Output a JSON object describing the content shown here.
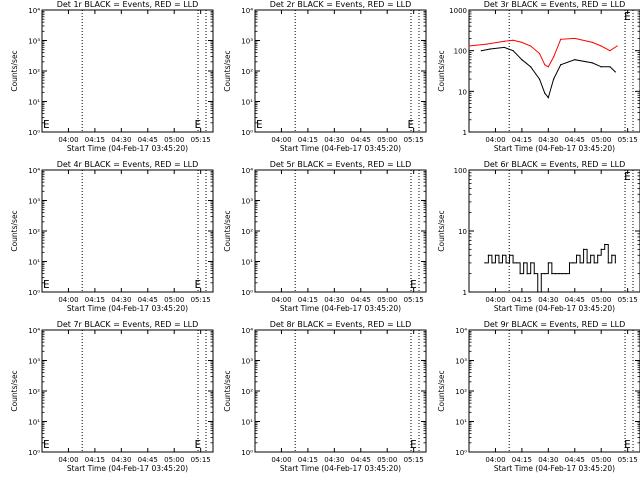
{
  "chart_data": [
    {
      "type": "line",
      "title": "Det 1r BLACK = Events, RED = LLD",
      "xlabel": "Start Time (04-Feb-17 03:45:20)",
      "ylabel": "Counts/sec",
      "log_y": true,
      "ylim": [
        1,
        10000
      ],
      "y_ticks": [
        "10⁰",
        "10¹",
        "10²",
        "10³",
        "10⁴"
      ],
      "x_tick_labels": [
        "04:00",
        "04:15",
        "04:30",
        "04:45",
        "05:00",
        "05:15"
      ],
      "event_markers": [
        "E",
        "E"
      ],
      "series": []
    },
    {
      "type": "line",
      "title": "Det 2r BLACK = Events, RED = LLD",
      "xlabel": "Start Time (04-Feb-17 03:45:20)",
      "ylabel": "Counts/sec",
      "log_y": true,
      "ylim": [
        1,
        10000
      ],
      "y_ticks": [
        "10⁰",
        "10¹",
        "10²",
        "10³",
        "10⁴"
      ],
      "x_tick_labels": [
        "04:00",
        "04:15",
        "04:30",
        "04:45",
        "05:00",
        "05:15"
      ],
      "event_markers": [
        "E",
        "E"
      ],
      "series": []
    },
    {
      "type": "line",
      "title": "Det 3r BLACK = Events, RED = LLD",
      "xlabel": "Start Time (04-Feb-17 03:45:20)",
      "ylabel": "Counts/sec",
      "log_y": true,
      "ylim": [
        1,
        1000
      ],
      "y_ticks": [
        "1",
        "10",
        "100",
        "1000"
      ],
      "x_tick_labels": [
        "04:00",
        "04:15",
        "04:30",
        "04:45",
        "05:00",
        "05:15"
      ],
      "event_markers": [
        "E"
      ],
      "colors": {
        "events": "#000000",
        "lld": "#ff0000"
      },
      "series": [
        {
          "color": "#ff0000",
          "x": [
            "03:45",
            "03:55",
            "04:05",
            "04:10",
            "04:15",
            "04:20",
            "04:25",
            "04:28",
            "04:30",
            "04:33",
            "04:37",
            "04:45",
            "04:55",
            "05:00",
            "05:05",
            "05:09"
          ],
          "y": [
            130,
            145,
            170,
            180,
            160,
            130,
            85,
            45,
            40,
            70,
            190,
            200,
            160,
            130,
            100,
            130
          ]
        },
        {
          "color": "#000000",
          "x": [
            "03:52",
            "03:57",
            "04:05",
            "04:10",
            "04:15",
            "04:20",
            "04:25",
            "04:28",
            "04:30",
            "04:33",
            "04:37",
            "04:45",
            "04:55",
            "05:00",
            "05:05",
            "05:08"
          ],
          "y": [
            100,
            110,
            120,
            100,
            60,
            40,
            20,
            9,
            7,
            20,
            45,
            60,
            50,
            40,
            40,
            30
          ]
        }
      ]
    },
    {
      "type": "line",
      "title": "Det 4r BLACK = Events, RED = LLD",
      "xlabel": "Start Time (04-Feb-17 03:45:20)",
      "ylabel": "Counts/sec",
      "log_y": true,
      "ylim": [
        1,
        10000
      ],
      "y_ticks": [
        "10⁰",
        "10¹",
        "10²",
        "10³",
        "10⁴"
      ],
      "x_tick_labels": [
        "04:00",
        "04:15",
        "04:30",
        "04:45",
        "05:00",
        "05:15"
      ],
      "event_markers": [
        "E",
        "E"
      ],
      "series": []
    },
    {
      "type": "line",
      "title": "Det 5r BLACK = Events, RED = LLD",
      "xlabel": "Start Time (04-Feb-17 03:45:20)",
      "ylabel": "Counts/sec",
      "log_y": true,
      "ylim": [
        1,
        10000
      ],
      "y_ticks": [
        "10⁰",
        "10¹",
        "10²",
        "10³",
        "10⁴"
      ],
      "x_tick_labels": [
        "04:00",
        "04:15",
        "04:30",
        "04:45",
        "05:00",
        "05:15"
      ],
      "event_markers": [
        "E"
      ],
      "series": []
    },
    {
      "type": "line",
      "title": "Det 6r BLACK = Events, RED = LLD",
      "xlabel": "Start Time (04-Feb-17 03:45:20)",
      "ylabel": "Counts/sec",
      "log_y": true,
      "ylim": [
        1,
        100
      ],
      "y_ticks": [
        "1",
        "10",
        "100"
      ],
      "x_tick_labels": [
        "04:00",
        "04:15",
        "04:30",
        "04:45",
        "05:00",
        "05:15"
      ],
      "event_markers": [
        "E"
      ],
      "colors": {
        "events": "#000000"
      },
      "series": [
        {
          "color": "#000000",
          "step": true,
          "x": [
            "03:54",
            "03:56",
            "03:58",
            "04:00",
            "04:02",
            "04:04",
            "04:06",
            "04:08",
            "04:10",
            "04:12",
            "04:14",
            "04:16",
            "04:18",
            "04:20",
            "04:22",
            "04:24",
            "04:26",
            "04:28",
            "04:30",
            "04:32",
            "04:34",
            "04:36",
            "04:38",
            "04:40",
            "04:42",
            "04:44",
            "04:46",
            "04:48",
            "04:50",
            "04:52",
            "04:54",
            "04:56",
            "04:58",
            "05:00",
            "05:02",
            "05:04",
            "05:06",
            "05:08"
          ],
          "y": [
            3,
            4,
            3,
            4,
            3,
            4,
            3,
            4,
            3,
            3,
            2,
            3,
            2,
            3,
            2,
            1,
            2,
            2,
            3,
            2,
            2,
            2,
            2,
            2,
            3,
            3,
            4,
            3,
            5,
            3,
            4,
            3,
            4,
            5,
            6,
            3,
            4,
            3
          ]
        }
      ]
    },
    {
      "type": "line",
      "title": "Det 7r BLACK = Events, RED = LLD",
      "xlabel": "Start Time (04-Feb-17 03:45:20)",
      "ylabel": "Counts/sec",
      "log_y": true,
      "ylim": [
        1,
        10000
      ],
      "y_ticks": [
        "10⁰",
        "10¹",
        "10²",
        "10³",
        "10⁴"
      ],
      "x_tick_labels": [
        "04:00",
        "04:15",
        "04:30",
        "04:45",
        "05:00",
        "05:15"
      ],
      "event_markers": [
        "E",
        "E"
      ],
      "series": []
    },
    {
      "type": "line",
      "title": "Det 8r BLACK = Events, RED = LLD",
      "xlabel": "Start Time (04-Feb-17 03:45:20)",
      "ylabel": "Counts/sec",
      "log_y": true,
      "ylim": [
        1,
        10000
      ],
      "y_ticks": [
        "10⁰",
        "10¹",
        "10²",
        "10³",
        "10⁴"
      ],
      "x_tick_labels": [
        "04:00",
        "04:15",
        "04:30",
        "04:45",
        "05:00",
        "05:15"
      ],
      "event_markers": [
        "E"
      ],
      "series": []
    },
    {
      "type": "line",
      "title": "Det 9r BLACK = Events, RED = LLD",
      "xlabel": "Start Time (04-Feb-17 03:45:20)",
      "ylabel": "Counts/sec",
      "log_y": true,
      "ylim": [
        1,
        10000
      ],
      "y_ticks": [
        "10⁰",
        "10¹",
        "10²",
        "10³",
        "10⁴"
      ],
      "x_tick_labels": [
        "04:00",
        "04:15",
        "04:30",
        "04:45",
        "05:00",
        "05:15"
      ],
      "event_markers": [
        "E"
      ],
      "series": []
    }
  ]
}
